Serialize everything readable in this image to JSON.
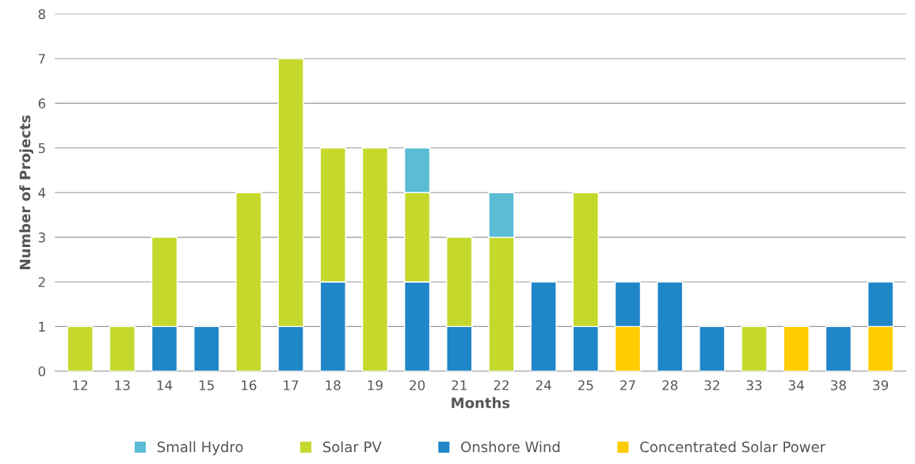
{
  "chart_data": {
    "type": "bar",
    "stacked": true,
    "xlabel": "Months",
    "ylabel": "Number of Projects",
    "categories": [
      "12",
      "13",
      "14",
      "15",
      "16",
      "17",
      "18",
      "19",
      "20",
      "21",
      "22",
      "24",
      "25",
      "27",
      "28",
      "32",
      "33",
      "34",
      "38",
      "39"
    ],
    "series": [
      {
        "name": "Concentrated Solar Power",
        "color": "#ffcc00",
        "values": [
          null,
          null,
          null,
          null,
          null,
          null,
          null,
          null,
          null,
          null,
          null,
          null,
          null,
          1,
          null,
          null,
          null,
          1,
          null,
          1
        ]
      },
      {
        "name": "Onshore Wind",
        "color": "#1f86c8",
        "values": [
          null,
          null,
          1,
          1,
          null,
          1,
          2,
          null,
          2,
          1,
          null,
          2,
          1,
          1,
          2,
          1,
          null,
          null,
          1,
          1
        ]
      },
      {
        "name": "Solar PV",
        "color": "#c5d92d",
        "values": [
          1,
          1,
          2,
          null,
          4,
          6,
          3,
          5,
          2,
          2,
          3,
          null,
          3,
          null,
          null,
          null,
          1,
          null,
          null,
          null
        ]
      },
      {
        "name": "Small Hydro",
        "color": "#5bbcd6",
        "values": [
          null,
          null,
          null,
          null,
          null,
          null,
          null,
          null,
          1,
          null,
          1,
          null,
          null,
          null,
          null,
          null,
          null,
          null,
          null,
          null
        ]
      }
    ],
    "ylim": [
      0,
      8
    ],
    "yticks": [
      0,
      1,
      2,
      3,
      4,
      5,
      6,
      7,
      8
    ],
    "grid": "y",
    "legend": "bottom"
  }
}
